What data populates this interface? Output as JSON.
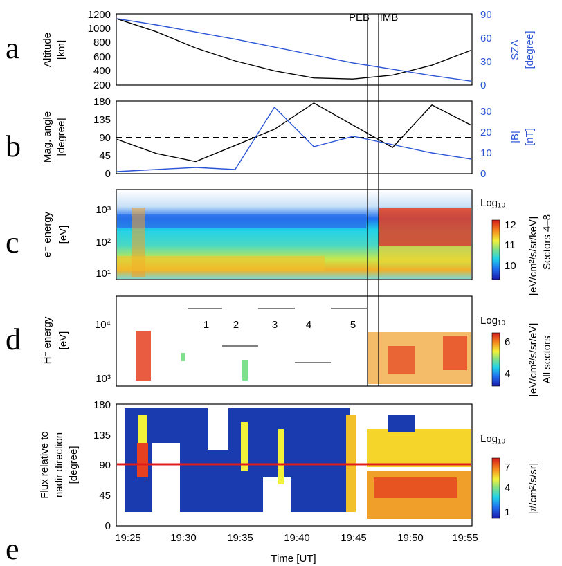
{
  "time_axis": {
    "ticks": [
      "19:25",
      "19:30",
      "19:35",
      "19:40",
      "19:45",
      "19:50",
      "19:55"
    ],
    "label": "Time [UT]"
  },
  "boundaries": {
    "peb_label": "PEB",
    "imb_label": "IMB"
  },
  "colors": {
    "black_line": "#000000",
    "blue_line": "#2b55d6",
    "red_line": "#e01b1b"
  },
  "chart_data": [
    {
      "type": "line",
      "panel_letter": "a",
      "ylabel_left": [
        "Altitude",
        "[km]"
      ],
      "ylabel_right": [
        "SZA",
        "[degree]"
      ],
      "left_ticks": [
        "1200",
        "1000",
        "800",
        "600",
        "400",
        "200"
      ],
      "right_ticks": [
        "90",
        "60",
        "30",
        "0"
      ],
      "ylim_left": [
        200,
        1200
      ],
      "ylim_right": [
        0,
        90
      ],
      "series": [
        {
          "axis": "left",
          "color": "#000000",
          "x": [
            19.4,
            19.5,
            19.6,
            19.7,
            19.8,
            19.9,
            20.0,
            20.1,
            20.2,
            20.3
          ],
          "y": [
            1130,
            950,
            720,
            540,
            400,
            300,
            285,
            340,
            480,
            690
          ]
        },
        {
          "axis": "right",
          "color": "#2b55d6",
          "x": [
            19.4,
            19.5,
            19.6,
            19.7,
            19.8,
            19.9,
            20.0,
            20.1,
            20.2,
            20.3
          ],
          "y": [
            84,
            76,
            67,
            58,
            48,
            38,
            28,
            20,
            12,
            5
          ]
        }
      ]
    },
    {
      "type": "line",
      "panel_letter": "b",
      "ylabel_left": [
        "Mag. angle",
        "[degree]"
      ],
      "ylabel_right": [
        "|B|",
        "[nT]"
      ],
      "left_ticks": [
        "180",
        "135",
        "90",
        "45",
        "0"
      ],
      "right_ticks": [
        "30",
        "20",
        "10",
        "0"
      ],
      "ylim_left": [
        0,
        180
      ],
      "ylim_right": [
        0,
        35
      ],
      "reference_line": 90,
      "series": [
        {
          "axis": "left",
          "color": "#000000",
          "x": [
            19.4,
            19.5,
            19.6,
            19.7,
            19.8,
            19.9,
            20.0,
            20.1,
            20.2,
            20.3
          ],
          "y": [
            85,
            50,
            30,
            70,
            110,
            175,
            120,
            65,
            170,
            120
          ]
        },
        {
          "axis": "right",
          "color": "#2b55d6",
          "x": [
            19.4,
            19.5,
            19.6,
            19.7,
            19.8,
            19.9,
            20.0,
            20.1,
            20.2,
            20.3
          ],
          "y": [
            1,
            2,
            3,
            2,
            32,
            13,
            18,
            14,
            10,
            7
          ]
        }
      ]
    },
    {
      "type": "heatmap",
      "panel_letter": "c",
      "ylabel_lines": [
        "e⁻ energy",
        "[eV]"
      ],
      "ytick_labels": [
        "10³",
        "10²",
        "10¹"
      ],
      "colorbar_title": "Log₁₀",
      "colorbar_ticks": [
        "12",
        "11",
        "10"
      ],
      "colorbar_unit": "[eV/cm²/s/sr/keV]",
      "colorbar_note": "Sectors 4–8"
    },
    {
      "type": "heatmap",
      "panel_letter": "d",
      "ylabel_lines": [
        "H⁺ energy",
        "[eV]"
      ],
      "ytick_labels": [
        "10⁴",
        "10³"
      ],
      "colorbar_title": "Log₁₀",
      "colorbar_ticks": [
        "6",
        "4"
      ],
      "colorbar_unit": "[eV/cm²/s/sr/eV]",
      "colorbar_note": "All sectors",
      "interval_labels": [
        "1",
        "2",
        "3",
        "4",
        "5"
      ]
    },
    {
      "type": "heatmap",
      "panel_letter": "e",
      "ylabel_lines": [
        "Flux relative to",
        "nadir direction",
        "[degree]"
      ],
      "ytick_labels": [
        "180",
        "135",
        "90",
        "45",
        "0"
      ],
      "colorbar_title": "Log₁₀",
      "colorbar_ticks": [
        "7",
        "4",
        "1"
      ],
      "colorbar_unit": "[#/cm²/s/sr]"
    }
  ]
}
